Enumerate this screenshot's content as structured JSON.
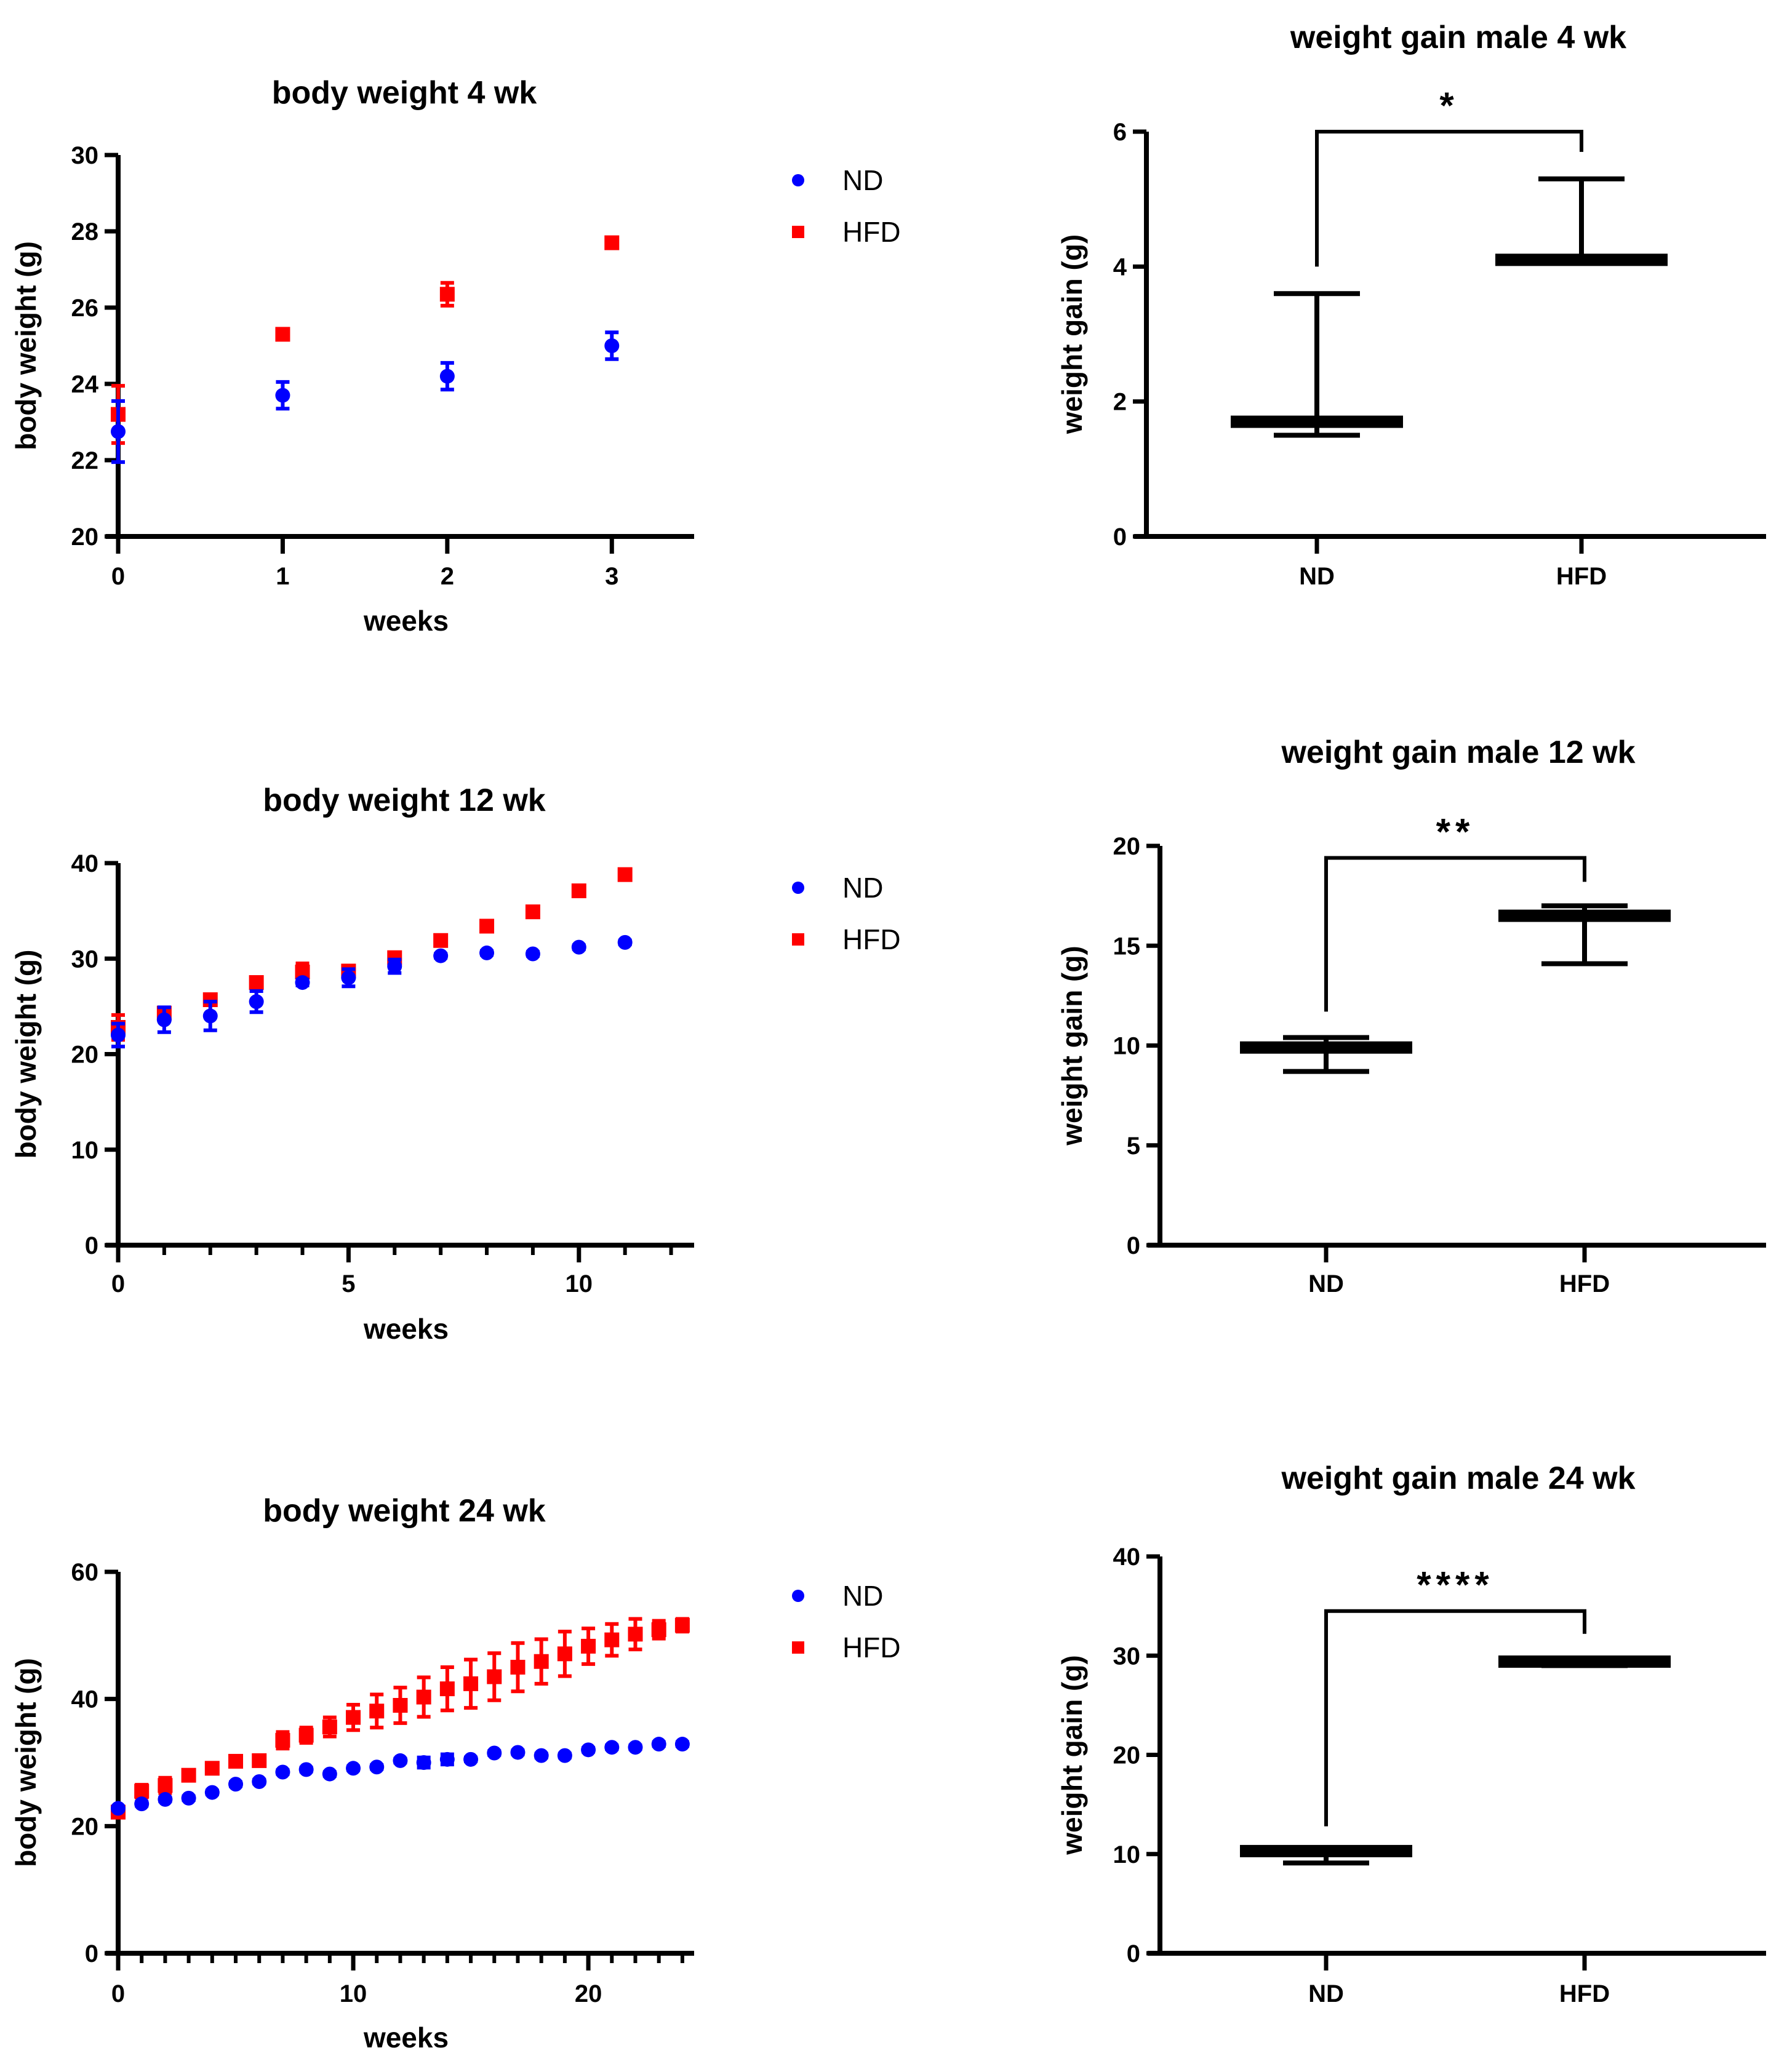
{
  "chart_data": [
    {
      "id": "bw4",
      "type": "scatter",
      "title": "body weight 4 wk",
      "xlabel": "weeks",
      "ylabel": "body weight (g)",
      "xlim": [
        0,
        3.5
      ],
      "ylim": [
        20,
        30
      ],
      "xticks": [
        0,
        1,
        2,
        3
      ],
      "xtick_labels": [
        "0",
        "1",
        "2",
        "3"
      ],
      "yticks": [
        20,
        22,
        24,
        26,
        28,
        30
      ],
      "ytick_labels": [
        "20",
        "22",
        "24",
        "26",
        "28",
        "30"
      ],
      "minor_xticks": [],
      "legend": "right",
      "series": [
        {
          "name": "ND",
          "marker": "circle",
          "color": "#0000ff",
          "x": [
            0,
            1,
            2,
            3
          ],
          "y": [
            22.75,
            23.7,
            24.2,
            25.0
          ],
          "err": [
            0.8,
            0.35,
            0.35,
            0.35
          ]
        },
        {
          "name": "HFD",
          "marker": "square",
          "color": "#ff0000",
          "x": [
            0,
            1,
            2,
            3
          ],
          "y": [
            23.2,
            25.3,
            26.35,
            27.7
          ],
          "err": [
            0.75,
            0.05,
            0.3,
            0.05
          ]
        }
      ]
    },
    {
      "id": "bw12",
      "type": "scatter",
      "title": "body weight 12 wk",
      "xlabel": "weeks",
      "ylabel": "body weight (g)",
      "xlim": [
        0,
        12.5
      ],
      "ylim": [
        0,
        40
      ],
      "xticks": [
        0,
        5,
        10
      ],
      "xtick_labels": [
        "0",
        "5",
        "10"
      ],
      "yticks": [
        0,
        10,
        20,
        30,
        40
      ],
      "ytick_labels": [
        "0",
        "10",
        "20",
        "30",
        "40"
      ],
      "minor_xticks": [
        1,
        2,
        3,
        4,
        6,
        7,
        8,
        9,
        11,
        12
      ],
      "legend": "right",
      "series": [
        {
          "name": "ND",
          "marker": "circle",
          "color": "#0000ff",
          "x": [
            0,
            1,
            2,
            3,
            4,
            5,
            6,
            7,
            8,
            9,
            10,
            11
          ],
          "y": [
            22.0,
            23.6,
            24.0,
            25.5,
            27.5,
            28.0,
            29.2,
            30.3,
            30.6,
            30.5,
            31.2,
            31.7
          ],
          "err": [
            1.2,
            1.3,
            1.5,
            1.1,
            0.3,
            0.9,
            0.7,
            0.2,
            0.2,
            0.2,
            0.2,
            0.2
          ]
        },
        {
          "name": "HFD",
          "marker": "square",
          "color": "#ff0000",
          "x": [
            0,
            1,
            2,
            3,
            4,
            5,
            6,
            7,
            8,
            9,
            10,
            11
          ],
          "y": [
            22.8,
            24.3,
            25.7,
            27.5,
            28.6,
            28.7,
            30.1,
            31.9,
            33.4,
            34.9,
            37.1,
            38.8
          ],
          "err": [
            1.3,
            0.5,
            0.5,
            0.3,
            0.9,
            0.4,
            0.3,
            0.2,
            0.5,
            0.2,
            0.2,
            0.2
          ]
        }
      ]
    },
    {
      "id": "bw24",
      "type": "scatter",
      "title": "body weight 24 wk",
      "xlabel": "weeks",
      "ylabel": "body weight (g)",
      "xlim": [
        0,
        24.5
      ],
      "ylim": [
        0,
        60
      ],
      "xticks": [
        0,
        10,
        20
      ],
      "xtick_labels": [
        "0",
        "10",
        "20"
      ],
      "yticks": [
        0,
        20,
        40,
        60
      ],
      "ytick_labels": [
        "0",
        "20",
        "40",
        "60"
      ],
      "minor_xticks": [
        1,
        2,
        3,
        4,
        5,
        6,
        7,
        8,
        9,
        11,
        12,
        13,
        14,
        15,
        16,
        17,
        18,
        19,
        21,
        22,
        23,
        24
      ],
      "legend": "right",
      "series": [
        {
          "name": "ND",
          "marker": "circle",
          "color": "#0000ff",
          "x": [
            0,
            1,
            2,
            3,
            4,
            5,
            6,
            7,
            8,
            9,
            10,
            11,
            12,
            13,
            14,
            15,
            16,
            17,
            18,
            19,
            20,
            21,
            22,
            23,
            24
          ],
          "y": [
            22.8,
            23.5,
            24.2,
            24.4,
            25.3,
            26.6,
            27.0,
            28.5,
            28.9,
            28.2,
            29.1,
            29.3,
            30.3,
            30.0,
            30.5,
            30.5,
            31.5,
            31.6,
            31.1,
            31.1,
            32.0,
            32.4,
            32.4,
            32.9,
            32.9
          ],
          "err": [
            0.3,
            0.3,
            0.3,
            0.3,
            0.3,
            0.3,
            0.3,
            0.3,
            0.3,
            0.3,
            0.3,
            0.3,
            0.3,
            0.8,
            0.8,
            0.3,
            0.3,
            0.3,
            0.3,
            0.3,
            0.3,
            0.3,
            0.3,
            0.3,
            0.3
          ]
        },
        {
          "name": "HFD",
          "marker": "square",
          "color": "#ff0000",
          "x": [
            0,
            1,
            2,
            3,
            4,
            5,
            6,
            7,
            8,
            9,
            10,
            11,
            12,
            13,
            14,
            15,
            16,
            17,
            18,
            19,
            20,
            21,
            22,
            23,
            24
          ],
          "y": [
            22.2,
            25.5,
            26.4,
            28.0,
            29.1,
            30.2,
            30.3,
            33.5,
            34.3,
            35.6,
            37.1,
            38.1,
            39.0,
            40.3,
            41.6,
            42.4,
            43.5,
            45.0,
            45.9,
            47.1,
            48.3,
            49.3,
            50.2,
            50.9,
            51.6
          ],
          "err": [
            0.6,
            1.0,
            1.2,
            0.4,
            0.4,
            0.4,
            0.4,
            1.3,
            1.2,
            1.5,
            2.0,
            2.6,
            2.8,
            3.1,
            3.4,
            3.8,
            3.7,
            3.8,
            3.5,
            3.5,
            2.8,
            2.5,
            2.4,
            1.4,
            1.0
          ]
        }
      ]
    },
    {
      "id": "wg4",
      "type": "bar",
      "title": "weight gain male 4 wk",
      "xlabel": "",
      "ylabel": "weight gain (g)",
      "ylim": [
        0,
        6
      ],
      "yticks": [
        0,
        2,
        4,
        6
      ],
      "ytick_labels": [
        "0",
        "2",
        "4",
        "6"
      ],
      "categories": [
        "ND",
        "HFD"
      ],
      "mean": [
        1.7,
        4.1
      ],
      "err_upper": [
        3.6,
        5.3
      ],
      "err_lower": [
        1.5,
        4.1
      ],
      "significance": "*",
      "bracket_left_y": 4.0,
      "bracket_right_y": 5.7,
      "bracket_top_y": 6.0
    },
    {
      "id": "wg12",
      "type": "bar",
      "title": "weight gain male 12 wk",
      "xlabel": "",
      "ylabel": "weight gain (g)",
      "ylim": [
        0,
        20
      ],
      "yticks": [
        0,
        5,
        10,
        15,
        20
      ],
      "ytick_labels": [
        "0",
        "5",
        "10",
        "15",
        "20"
      ],
      "categories": [
        "ND",
        "HFD"
      ],
      "mean": [
        9.9,
        16.5
      ],
      "err_upper": [
        10.4,
        17.0
      ],
      "err_lower": [
        8.7,
        14.1
      ],
      "significance": "**",
      "bracket_left_y": 11.7,
      "bracket_right_y": 18.2,
      "bracket_top_y": 19.4
    },
    {
      "id": "wg24",
      "type": "bar",
      "title": "weight gain male 24 wk",
      "xlabel": "",
      "ylabel": "weight gain (g)",
      "ylim": [
        0,
        40
      ],
      "yticks": [
        0,
        10,
        20,
        30,
        40
      ],
      "ytick_labels": [
        "0",
        "10",
        "20",
        "30",
        "40"
      ],
      "categories": [
        "ND",
        "HFD"
      ],
      "mean": [
        10.3,
        29.4
      ],
      "err_upper": [
        10.3,
        29.4
      ],
      "err_lower": [
        9.1,
        29.0
      ],
      "significance": "****",
      "bracket_left_y": 12.8,
      "bracket_right_y": 32.2,
      "bracket_top_y": 34.5
    }
  ],
  "legend_labels": {
    "nd": "ND",
    "hfd": "HFD"
  }
}
